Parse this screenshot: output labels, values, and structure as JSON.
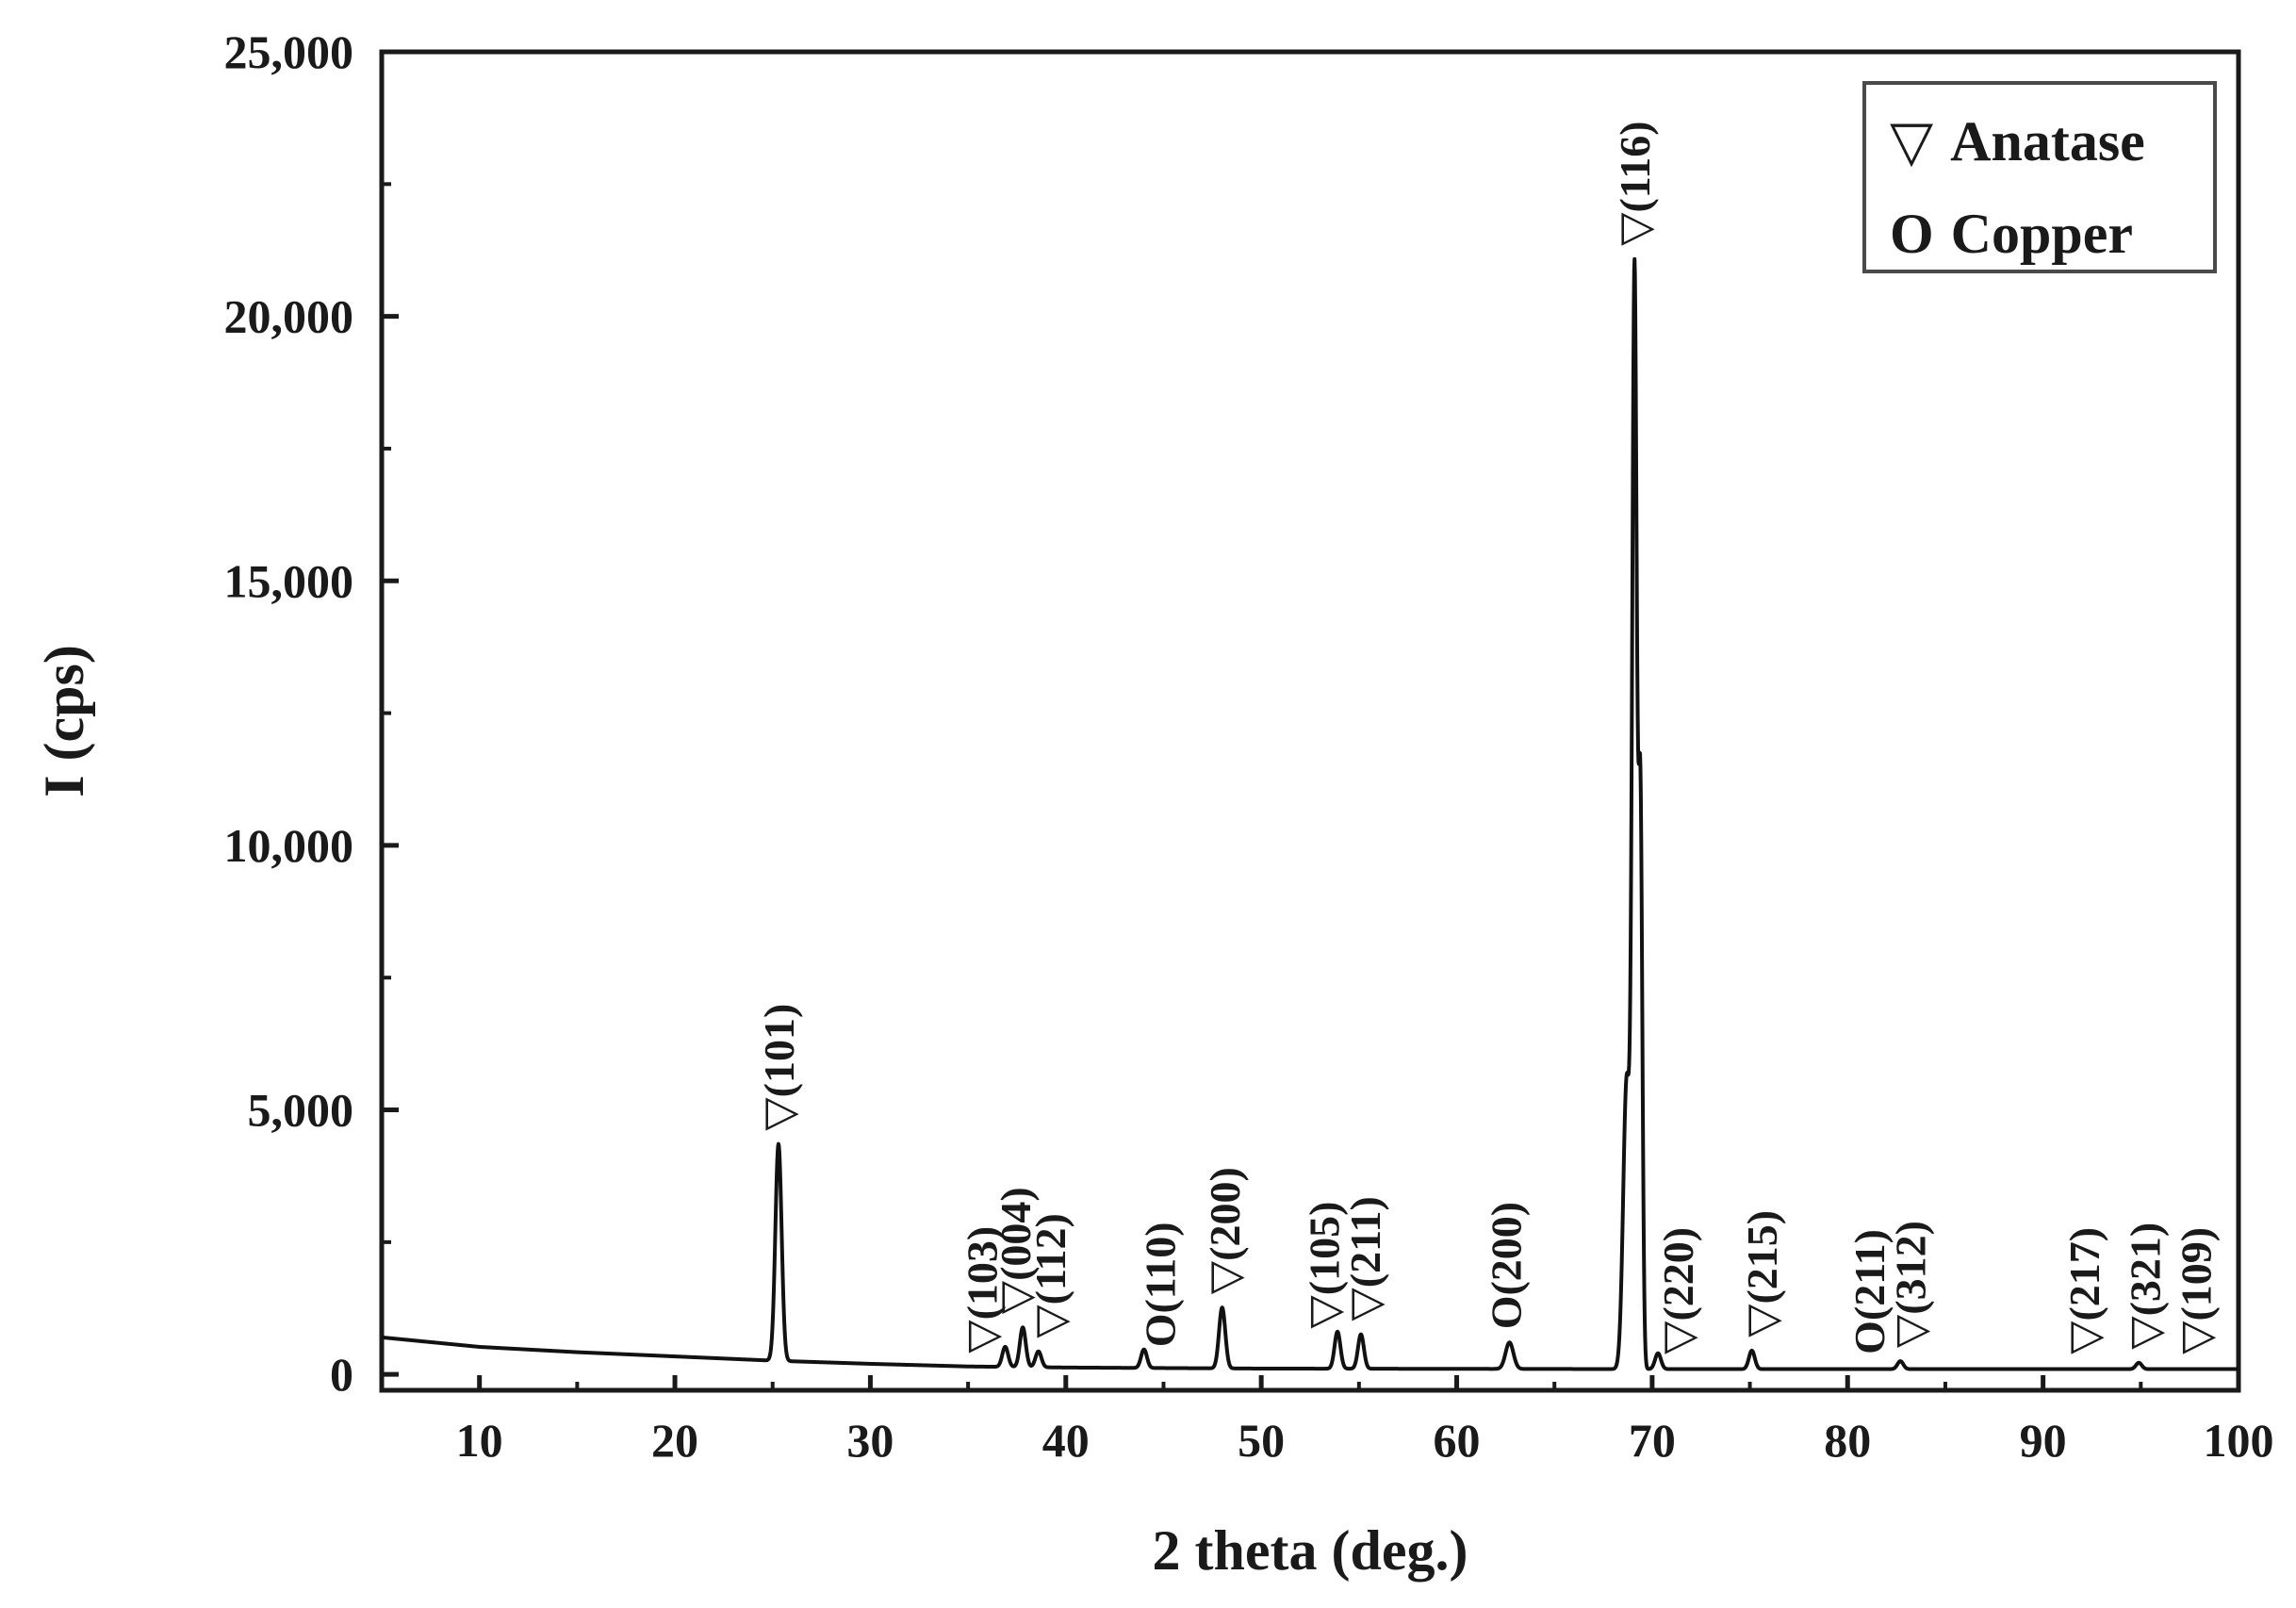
{
  "chart_data": {
    "type": "line",
    "title": "",
    "xlabel": "2 theta (deg.)",
    "ylabel": "I (cps)",
    "xlim": [
      5,
      100
    ],
    "ylim": [
      -300,
      25000
    ],
    "x_ticks": [
      10,
      20,
      30,
      40,
      50,
      60,
      70,
      80,
      90,
      100
    ],
    "x_tick_labels": [
      "10",
      "20",
      "30",
      "40",
      "50",
      "60",
      "70",
      "80",
      "90",
      "100"
    ],
    "y_ticks": [
      0,
      5000,
      10000,
      15000,
      20000,
      25000
    ],
    "y_tick_labels": [
      "0",
      "5,000",
      "10,000",
      "15,000",
      "20,000",
      "25,000"
    ],
    "grid": false,
    "legend_position": "top-right",
    "legend": [
      {
        "symbol": "▽",
        "label": "Anatase"
      },
      {
        "symbol": "O",
        "label": "Copper"
      }
    ],
    "series": [
      {
        "background": [
          [
            5,
            700
          ],
          [
            10,
            520
          ],
          [
            15,
            420
          ],
          [
            20,
            340
          ],
          [
            25,
            260
          ],
          [
            30,
            200
          ],
          [
            35,
            150
          ],
          [
            40,
            130
          ],
          [
            50,
            110
          ],
          [
            60,
            105
          ],
          [
            70,
            100
          ],
          [
            80,
            100
          ],
          [
            90,
            100
          ],
          [
            100,
            100
          ]
        ],
        "peaks": [
          {
            "x": 25.3,
            "y": 4100,
            "w": 0.16
          },
          {
            "x": 36.9,
            "y": 380,
            "w": 0.15
          },
          {
            "x": 37.8,
            "y": 750,
            "w": 0.15
          },
          {
            "x": 38.6,
            "y": 300,
            "w": 0.15
          },
          {
            "x": 44.0,
            "y": 350,
            "w": 0.15
          },
          {
            "x": 48.0,
            "y": 1150,
            "w": 0.16
          },
          {
            "x": 53.9,
            "y": 700,
            "w": 0.15
          },
          {
            "x": 55.1,
            "y": 650,
            "w": 0.15
          },
          {
            "x": 62.7,
            "y": 500,
            "w": 0.2
          },
          {
            "x": 68.7,
            "y": 5500,
            "w": 0.18
          },
          {
            "x": 69.1,
            "y": 20400,
            "w": 0.12
          },
          {
            "x": 69.4,
            "y": 10500,
            "w": 0.1
          },
          {
            "x": 70.3,
            "y": 300,
            "w": 0.15
          },
          {
            "x": 75.1,
            "y": 350,
            "w": 0.15
          },
          {
            "x": 82.7,
            "y": 150,
            "w": 0.15
          },
          {
            "x": 94.9,
            "y": 120,
            "w": 0.15
          }
        ]
      }
    ],
    "annotations": [
      {
        "text": "▽(101)",
        "x": 25.3
      },
      {
        "text": "▽(103)",
        "x": 35.7
      },
      {
        "text": "▽(004)",
        "x": 37.4
      },
      {
        "text": "▽(112)",
        "x": 39.2
      },
      {
        "text": "O(110)",
        "x": 44.8
      },
      {
        "text": "▽(200)",
        "x": 48.1
      },
      {
        "text": "▽(105)",
        "x": 53.2
      },
      {
        "text": "▽(211)",
        "x": 55.3
      },
      {
        "text": "O(200)",
        "x": 62.5
      },
      {
        "text": "▽(116)",
        "x": 69.1
      },
      {
        "text": "▽(220)",
        "x": 71.3
      },
      {
        "text": "▽(215)",
        "x": 75.6
      },
      {
        "text": "O(211)",
        "x": 81.1
      },
      {
        "text": "▽(312)",
        "x": 83.2
      },
      {
        "text": "▽(217)",
        "x": 92.1
      },
      {
        "text": "▽(321)",
        "x": 95.2
      },
      {
        "text": "▽(109)",
        "x": 97.8
      }
    ]
  }
}
